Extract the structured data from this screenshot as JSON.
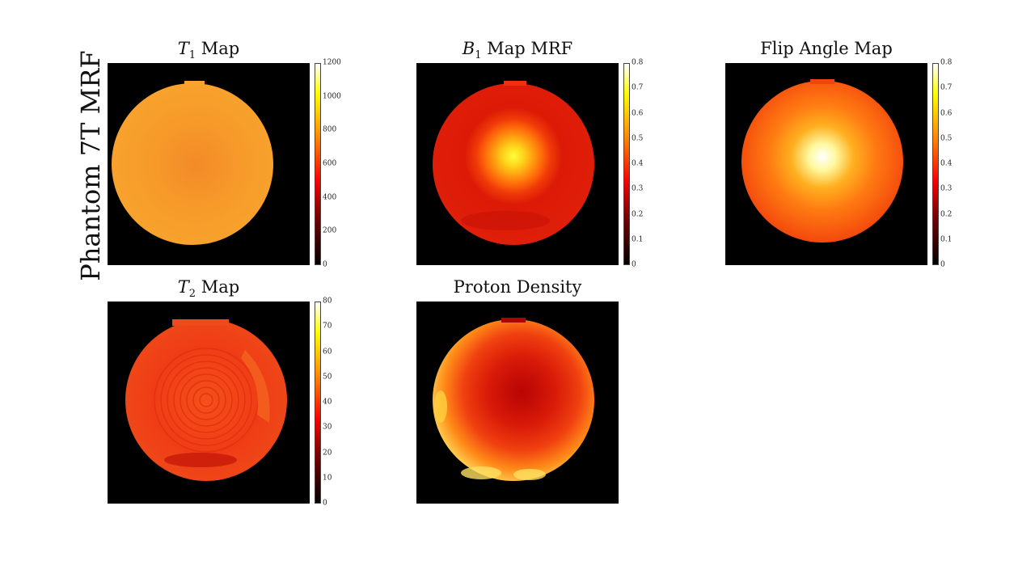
{
  "figure": {
    "row_label": "Phantom 7T MRF"
  },
  "panels": {
    "t1": {
      "title_symbol": "T",
      "title_sub": "1",
      "title_rest": " Map",
      "colorbar_ticks": [
        "1200",
        "1000",
        "800",
        "600",
        "400",
        "200",
        "0"
      ]
    },
    "b1": {
      "title_symbol": "B",
      "title_sub": "1",
      "title_rest": " Map MRF",
      "colorbar_ticks": [
        "0.8",
        "0.7",
        "0.6",
        "0.5",
        "0.4",
        "0.3",
        "0.2",
        "0.1",
        "0"
      ]
    },
    "flip": {
      "title": "Flip Angle Map",
      "colorbar_ticks": [
        "0.8",
        "0.7",
        "0.6",
        "0.5",
        "0.4",
        "0.3",
        "0.2",
        "0.1",
        "0"
      ]
    },
    "t2": {
      "title_symbol": "T",
      "title_sub": "2",
      "title_rest": " Map",
      "colorbar_ticks": [
        "80",
        "70",
        "60",
        "50",
        "40",
        "30",
        "20",
        "10",
        "0"
      ]
    },
    "pd": {
      "title": "Proton Density"
    }
  },
  "colormap": {
    "name": "hot",
    "stops": [
      "#000000",
      "#800000",
      "#ff0000",
      "#ff8000",
      "#ffff00",
      "#ffffff"
    ]
  }
}
